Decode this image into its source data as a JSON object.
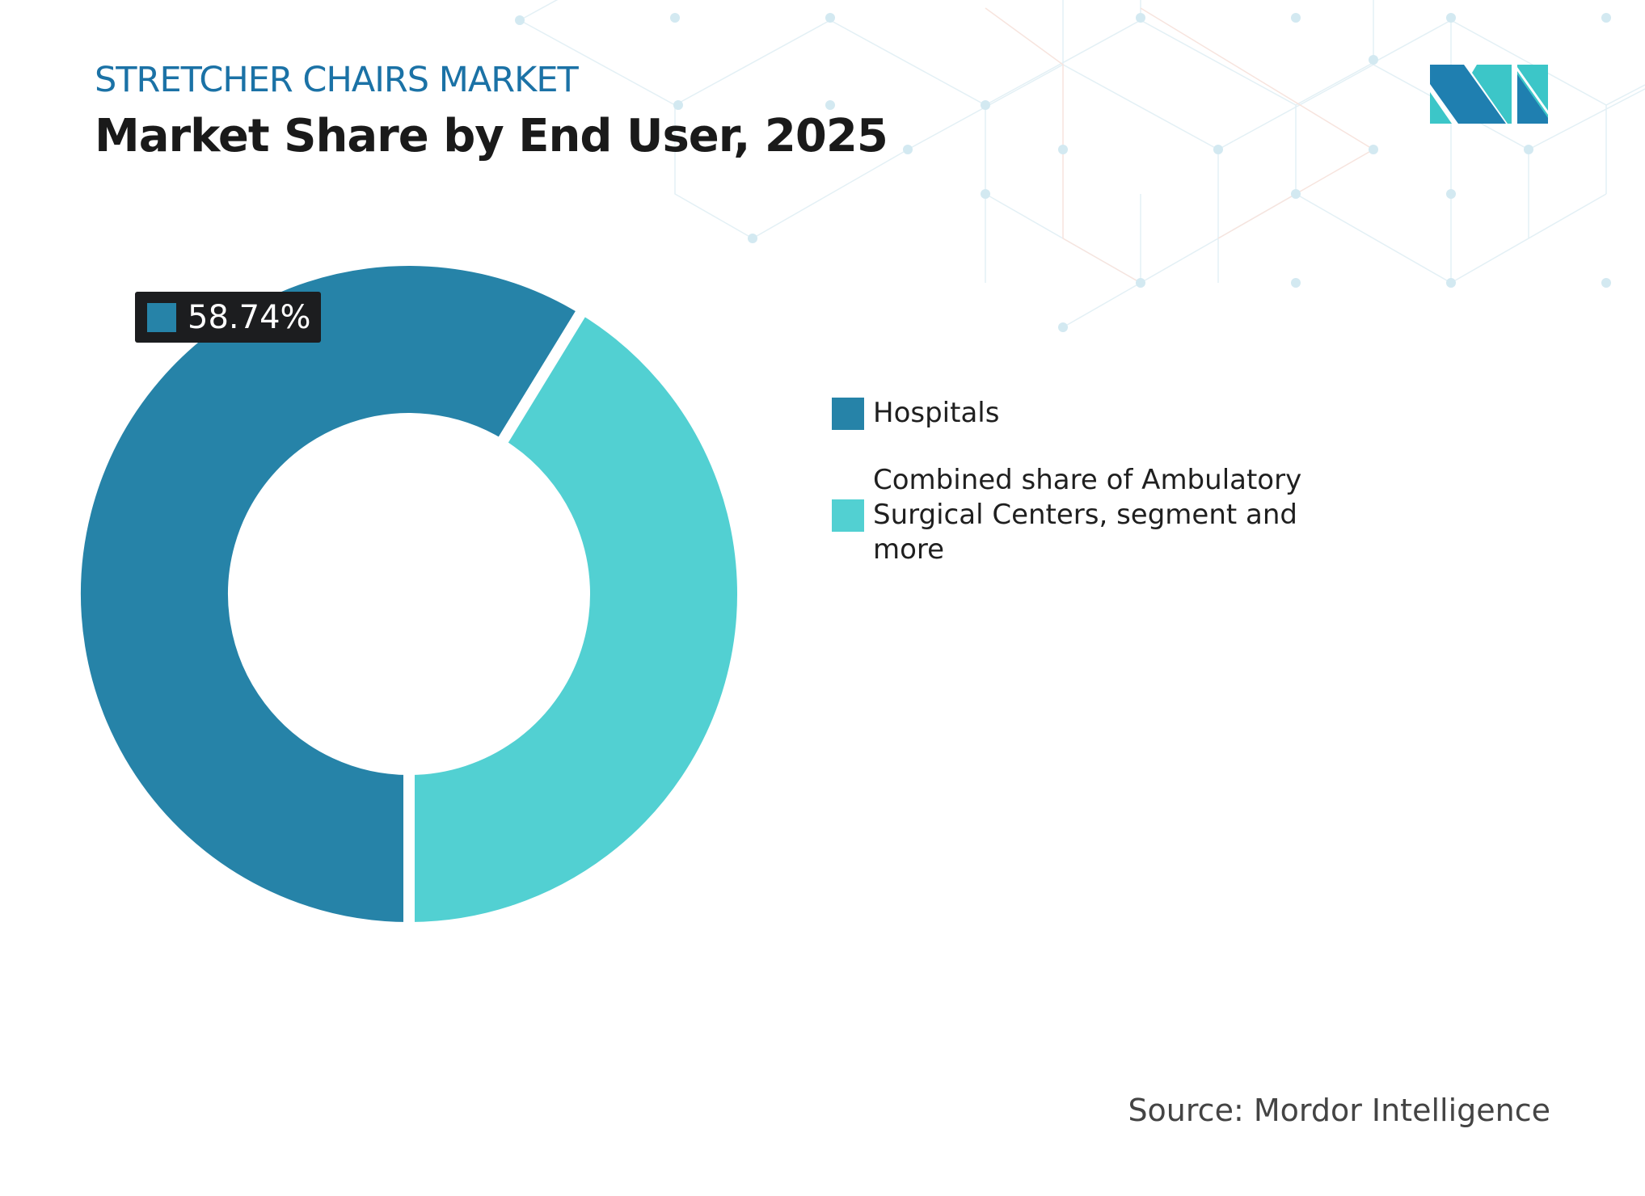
{
  "header": {
    "subtitle": "STRETCHER CHAIRS MARKET",
    "title": "Market Share by End User, 2025"
  },
  "chart_data": {
    "type": "pie",
    "donut": true,
    "title": "Market Share by End User, 2025",
    "categories": [
      "Hospitals",
      "Combined share of Ambulatory Surgical Centers, segment and more"
    ],
    "values": [
      58.74,
      41.26
    ],
    "colors": [
      "#2683a8",
      "#52d0d2"
    ],
    "data_labels": [
      {
        "category": "Hospitals",
        "text": "58.74%"
      }
    ],
    "legend_placement": "right"
  },
  "legend": {
    "items": [
      {
        "label": "Hospitals",
        "color": "#2683a8"
      },
      {
        "label": "Combined share of Ambulatory Surgical Centers, segment and more",
        "color": "#52d0d2"
      }
    ]
  },
  "callout": {
    "text": "58.74%"
  },
  "source": "Source: Mordor Intelligence",
  "logo": {
    "name": "mordor-intelligence-logo",
    "colors": [
      "#1f7fb0",
      "#3cc6c8"
    ]
  }
}
